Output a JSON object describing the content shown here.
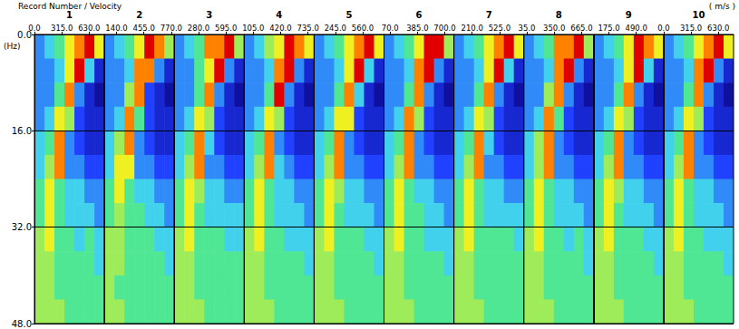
{
  "chart_data": {
    "type": "heatmap",
    "title": "Record Number / Velocity",
    "xlabel": "( m/s )",
    "ylabel": "(Hz)",
    "xlim": [
      0,
      805
    ],
    "ylim": [
      0,
      48
    ],
    "yticks": [
      {
        "value": 0,
        "label": "0.0"
      },
      {
        "value": 16,
        "label": "16.0"
      },
      {
        "value": 32,
        "label": "32.0"
      },
      {
        "value": 48,
        "label": "48.0"
      }
    ],
    "grid": true,
    "velocity_bins": [
      0,
      115,
      230,
      345,
      460,
      575,
      690,
      805
    ],
    "frequency_bins": [
      0,
      4,
      8,
      12,
      16,
      20,
      24,
      28,
      32,
      36,
      40,
      44,
      48
    ],
    "zlim": [
      0,
      9
    ],
    "panels": [
      {
        "record": 1,
        "xticks": [
          {
            "value": 0,
            "label": "0.0"
          },
          {
            "value": 315,
            "label": "315.0"
          },
          {
            "value": 630,
            "label": "630.0"
          }
        ],
        "cells": [
          [
            3,
            4,
            5,
            7,
            8,
            9,
            7
          ],
          [
            3,
            3,
            4,
            7,
            9,
            4,
            1
          ],
          [
            3,
            3,
            5,
            8,
            3,
            1,
            0
          ],
          [
            3,
            4,
            7,
            6,
            2,
            1,
            1
          ],
          [
            4,
            5,
            8,
            3,
            2,
            1,
            1
          ],
          [
            4,
            6,
            8,
            3,
            3,
            2,
            2
          ],
          [
            5,
            7,
            5,
            4,
            4,
            3,
            3
          ],
          [
            5,
            7,
            5,
            4,
            4,
            4,
            3
          ],
          [
            6,
            7,
            5,
            5,
            4,
            5,
            4
          ],
          [
            6,
            6,
            5,
            5,
            5,
            5,
            4
          ],
          [
            6,
            6,
            5,
            5,
            5,
            5,
            5
          ],
          [
            6,
            6,
            6,
            5,
            5,
            5,
            5
          ]
        ]
      },
      {
        "record": 2,
        "xticks": [
          {
            "value": 140,
            "label": "140.0"
          },
          {
            "value": 455,
            "label": "455.0"
          },
          {
            "value": 770,
            "label": "770.0"
          }
        ],
        "cells": [
          [
            3,
            4,
            5,
            7,
            9,
            8,
            6
          ],
          [
            3,
            3,
            4,
            8,
            8,
            3,
            1
          ],
          [
            3,
            3,
            6,
            8,
            2,
            1,
            0
          ],
          [
            3,
            4,
            8,
            5,
            2,
            1,
            1
          ],
          [
            4,
            6,
            8,
            3,
            2,
            1,
            1
          ],
          [
            4,
            7,
            7,
            3,
            3,
            2,
            2
          ],
          [
            5,
            7,
            5,
            4,
            4,
            3,
            3
          ],
          [
            5,
            6,
            5,
            5,
            4,
            4,
            3
          ],
          [
            6,
            6,
            5,
            5,
            5,
            4,
            4
          ],
          [
            6,
            6,
            5,
            5,
            5,
            5,
            4
          ],
          [
            6,
            5,
            5,
            5,
            5,
            5,
            5
          ],
          [
            6,
            6,
            5,
            5,
            5,
            5,
            5
          ]
        ]
      },
      {
        "record": 3,
        "xticks": [
          {
            "value": 280,
            "label": "280.0"
          },
          {
            "value": 595,
            "label": "595.0"
          }
        ],
        "cells": [
          [
            3,
            4,
            5,
            8,
            8,
            9,
            6
          ],
          [
            3,
            3,
            5,
            7,
            9,
            3,
            1
          ],
          [
            3,
            3,
            5,
            8,
            3,
            1,
            0
          ],
          [
            3,
            4,
            7,
            6,
            2,
            1,
            1
          ],
          [
            4,
            5,
            8,
            4,
            2,
            1,
            1
          ],
          [
            4,
            6,
            8,
            3,
            3,
            2,
            2
          ],
          [
            5,
            7,
            6,
            4,
            4,
            3,
            3
          ],
          [
            5,
            7,
            5,
            4,
            4,
            4,
            4
          ],
          [
            6,
            7,
            5,
            5,
            5,
            4,
            4
          ],
          [
            6,
            6,
            5,
            5,
            5,
            5,
            5
          ],
          [
            6,
            6,
            5,
            5,
            5,
            5,
            5
          ],
          [
            6,
            6,
            6,
            5,
            5,
            5,
            5
          ]
        ]
      },
      {
        "record": 4,
        "xticks": [
          {
            "value": 105,
            "label": "105.0"
          },
          {
            "value": 420,
            "label": "420.0"
          },
          {
            "value": 735,
            "label": "735.0"
          }
        ],
        "cells": [
          [
            3,
            4,
            6,
            7,
            9,
            8,
            7
          ],
          [
            3,
            3,
            4,
            8,
            9,
            3,
            1
          ],
          [
            3,
            3,
            5,
            9,
            3,
            1,
            0
          ],
          [
            3,
            4,
            7,
            6,
            2,
            1,
            1
          ],
          [
            4,
            5,
            8,
            3,
            2,
            1,
            1
          ],
          [
            4,
            6,
            8,
            4,
            3,
            2,
            2
          ],
          [
            5,
            7,
            5,
            4,
            4,
            3,
            3
          ],
          [
            5,
            7,
            5,
            4,
            4,
            4,
            3
          ],
          [
            6,
            7,
            5,
            5,
            4,
            4,
            4
          ],
          [
            6,
            6,
            5,
            5,
            5,
            5,
            4
          ],
          [
            6,
            6,
            5,
            5,
            5,
            5,
            5
          ],
          [
            6,
            6,
            6,
            5,
            5,
            5,
            5
          ]
        ]
      },
      {
        "record": 5,
        "xticks": [
          {
            "value": 245,
            "label": "245.0"
          },
          {
            "value": 560,
            "label": "560.0"
          }
        ],
        "cells": [
          [
            3,
            4,
            5,
            7,
            8,
            9,
            7
          ],
          [
            3,
            3,
            4,
            7,
            9,
            4,
            1
          ],
          [
            3,
            3,
            5,
            8,
            4,
            1,
            0
          ],
          [
            3,
            4,
            7,
            7,
            2,
            1,
            1
          ],
          [
            4,
            5,
            8,
            3,
            2,
            1,
            1
          ],
          [
            4,
            6,
            8,
            3,
            3,
            2,
            2
          ],
          [
            5,
            7,
            6,
            4,
            4,
            3,
            3
          ],
          [
            5,
            7,
            5,
            4,
            4,
            4,
            3
          ],
          [
            6,
            7,
            5,
            5,
            5,
            4,
            4
          ],
          [
            6,
            6,
            5,
            5,
            5,
            5,
            4
          ],
          [
            6,
            6,
            5,
            5,
            5,
            5,
            5
          ],
          [
            6,
            6,
            6,
            5,
            5,
            5,
            5
          ]
        ]
      },
      {
        "record": 6,
        "xticks": [
          {
            "value": 70,
            "label": "70.0"
          },
          {
            "value": 385,
            "label": "385.0"
          },
          {
            "value": 700,
            "label": "700.0"
          }
        ],
        "cells": [
          [
            3,
            4,
            5,
            7,
            9,
            9,
            6
          ],
          [
            3,
            3,
            4,
            8,
            9,
            3,
            1
          ],
          [
            3,
            3,
            5,
            8,
            3,
            1,
            0
          ],
          [
            3,
            4,
            8,
            6,
            2,
            1,
            1
          ],
          [
            4,
            5,
            8,
            3,
            2,
            1,
            1
          ],
          [
            4,
            6,
            8,
            3,
            3,
            2,
            2
          ],
          [
            5,
            7,
            5,
            4,
            4,
            3,
            3
          ],
          [
            5,
            7,
            5,
            5,
            4,
            4,
            3
          ],
          [
            6,
            7,
            5,
            5,
            4,
            4,
            4
          ],
          [
            6,
            6,
            5,
            5,
            5,
            5,
            4
          ],
          [
            6,
            6,
            5,
            5,
            5,
            5,
            5
          ],
          [
            6,
            6,
            6,
            5,
            5,
            5,
            5
          ]
        ]
      },
      {
        "record": 7,
        "xticks": [
          {
            "value": 210,
            "label": "210.0"
          },
          {
            "value": 525,
            "label": "525.0"
          }
        ],
        "cells": [
          [
            3,
            4,
            5,
            7,
            8,
            9,
            7
          ],
          [
            3,
            3,
            4,
            7,
            9,
            4,
            1
          ],
          [
            3,
            3,
            5,
            8,
            3,
            1,
            0
          ],
          [
            3,
            4,
            7,
            6,
            2,
            1,
            1
          ],
          [
            4,
            5,
            8,
            4,
            2,
            1,
            1
          ],
          [
            4,
            6,
            8,
            3,
            3,
            2,
            2
          ],
          [
            5,
            7,
            5,
            4,
            4,
            3,
            3
          ],
          [
            5,
            7,
            5,
            4,
            4,
            4,
            4
          ],
          [
            6,
            7,
            5,
            5,
            5,
            5,
            4
          ],
          [
            6,
            6,
            5,
            5,
            5,
            5,
            5
          ],
          [
            6,
            6,
            5,
            5,
            5,
            5,
            5
          ],
          [
            6,
            6,
            6,
            5,
            5,
            5,
            5
          ]
        ]
      },
      {
        "record": 8,
        "xticks": [
          {
            "value": 35,
            "label": "35.0"
          },
          {
            "value": 350,
            "label": "350.0"
          },
          {
            "value": 665,
            "label": "665.0"
          }
        ],
        "cells": [
          [
            3,
            4,
            5,
            8,
            8,
            9,
            6
          ],
          [
            3,
            3,
            4,
            8,
            9,
            3,
            1
          ],
          [
            3,
            3,
            6,
            8,
            3,
            1,
            0
          ],
          [
            3,
            4,
            8,
            5,
            2,
            1,
            1
          ],
          [
            4,
            6,
            8,
            3,
            2,
            1,
            1
          ],
          [
            4,
            6,
            8,
            3,
            3,
            2,
            2
          ],
          [
            5,
            7,
            5,
            4,
            4,
            3,
            3
          ],
          [
            5,
            7,
            5,
            4,
            4,
            4,
            3
          ],
          [
            6,
            7,
            5,
            5,
            4,
            5,
            4
          ],
          [
            6,
            6,
            5,
            5,
            5,
            5,
            4
          ],
          [
            6,
            6,
            5,
            5,
            5,
            5,
            5
          ],
          [
            6,
            6,
            6,
            5,
            5,
            5,
            5
          ]
        ]
      },
      {
        "record": 9,
        "xticks": [
          {
            "value": 175,
            "label": "175.0"
          },
          {
            "value": 490,
            "label": "490.0"
          }
        ],
        "cells": [
          [
            3,
            4,
            5,
            7,
            9,
            8,
            7
          ],
          [
            3,
            3,
            4,
            7,
            9,
            4,
            1
          ],
          [
            3,
            3,
            5,
            8,
            3,
            1,
            0
          ],
          [
            3,
            4,
            7,
            6,
            2,
            1,
            1
          ],
          [
            4,
            5,
            8,
            3,
            2,
            1,
            1
          ],
          [
            4,
            6,
            8,
            3,
            3,
            2,
            2
          ],
          [
            5,
            7,
            6,
            4,
            4,
            3,
            3
          ],
          [
            5,
            7,
            5,
            4,
            4,
            4,
            3
          ],
          [
            6,
            7,
            5,
            5,
            5,
            4,
            4
          ],
          [
            6,
            6,
            5,
            5,
            5,
            5,
            4
          ],
          [
            6,
            6,
            5,
            5,
            5,
            5,
            5
          ],
          [
            6,
            6,
            6,
            5,
            5,
            5,
            5
          ]
        ]
      },
      {
        "record": 10,
        "xticks": [
          {
            "value": 0,
            "label": "0.0"
          },
          {
            "value": 315,
            "label": "315.0"
          },
          {
            "value": 630,
            "label": "630.0"
          }
        ],
        "cells": [
          [
            3,
            4,
            5,
            7,
            8,
            9,
            7
          ],
          [
            3,
            3,
            4,
            8,
            9,
            3,
            1
          ],
          [
            3,
            3,
            5,
            8,
            3,
            1,
            0
          ],
          [
            3,
            4,
            7,
            6,
            2,
            1,
            1
          ],
          [
            4,
            5,
            8,
            3,
            2,
            1,
            1
          ],
          [
            4,
            6,
            8,
            3,
            3,
            2,
            2
          ],
          [
            5,
            7,
            5,
            4,
            4,
            3,
            3
          ],
          [
            5,
            7,
            5,
            4,
            4,
            4,
            3
          ],
          [
            6,
            7,
            5,
            5,
            4,
            4,
            4
          ],
          [
            6,
            6,
            5,
            5,
            5,
            5,
            4
          ],
          [
            6,
            6,
            5,
            5,
            5,
            5,
            5
          ],
          [
            6,
            6,
            6,
            5,
            5,
            5,
            5
          ]
        ]
      }
    ]
  }
}
